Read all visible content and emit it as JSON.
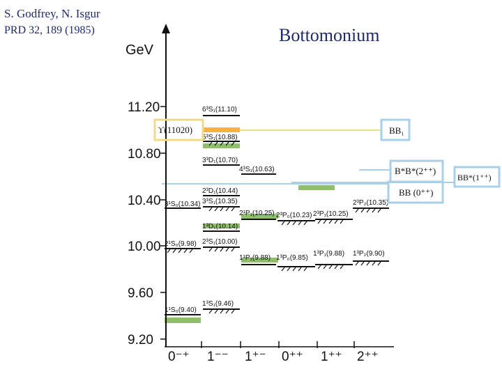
{
  "header": {
    "credit_authors": "S. Godfrey, N. Isgur",
    "credit_ref": "PRD 32, 189 (1985)",
    "title": "Bottomonium"
  },
  "axis": {
    "unit": "GeV",
    "ticks": [
      "11.20",
      "10.80",
      "10.40",
      "10.00",
      "9.60",
      "9.20"
    ],
    "columns": [
      "0⁻⁺",
      "1⁻⁻",
      "1⁺⁻",
      "0⁺⁺",
      "1⁺⁺",
      "2⁺⁺"
    ]
  },
  "states": {
    "s6": "6³S₁(11.10)",
    "s5": "5³S₁(10.88)",
    "d3": "3³D₁(10.70)",
    "s4": "4³S₁(10.63)",
    "d2": "2³D₁(10.44)",
    "s3v": "3³S₁(10.35)",
    "s3p": "3¹S₀(10.34)",
    "d1": "1³D₁(10.14)",
    "s2v": "2³S₁(10.00)",
    "s2p": "2¹S₀(9.98)",
    "s1v": "1³S₁(9.46)",
    "s1p": "1¹S₀(9.40)",
    "p2_1": "2¹P₁(10.25)",
    "p2_0": "2³P₀(10.23)",
    "p2_1b": "2³P₁(10.25)",
    "p2_2": "2³P₂(10.35)",
    "p1_1": "1¹P₁(9.88)",
    "p1_0": "1³P₀(9.85)",
    "p1_1b": "1³P₁(9.88)",
    "p1_2": "1³P₂(9.90)"
  },
  "annotations": {
    "upsilon": "ϒ(11020)",
    "bb1": "BB₁",
    "bsbs": "B*B*(2⁺⁺)",
    "bbs": "BB*(1⁺⁺)",
    "bb": "BB (0⁺⁺)"
  },
  "colors": {
    "yellow_box": "#f0d98a",
    "orange_bar": "#f2b53a",
    "green_bar": "#8fbf6a",
    "blue_box": "#a9cfe8",
    "text_navy": "#1f2a6b"
  }
}
